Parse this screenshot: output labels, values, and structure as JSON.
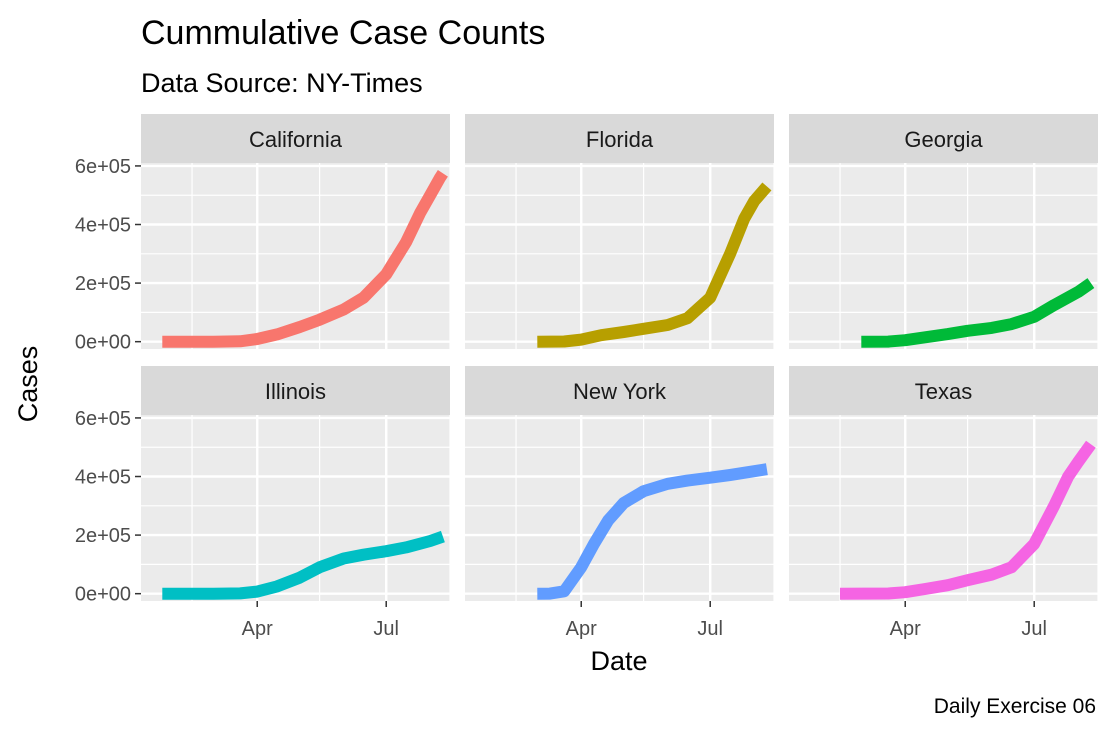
{
  "chart_data": {
    "type": "line",
    "title": "Cummulative Case Counts",
    "subtitle": "Data Source: NY-Times",
    "xlabel": "Date",
    "ylabel": "Cases",
    "caption": "Daily Exercise 06",
    "x_ticks": [
      "2020-04-01",
      "2020-07-01"
    ],
    "x_tick_labels": [
      "Apr",
      "Jul"
    ],
    "x_minor_ticks": [
      "2020-02-15",
      "2020-05-15",
      "2020-08-15"
    ],
    "xlim": [
      "2020-01-10",
      "2020-08-15"
    ],
    "y_ticks": [
      0,
      200000,
      400000,
      600000
    ],
    "y_tick_labels": [
      "0e+00",
      "2e+05",
      "4e+05",
      "6e+05"
    ],
    "ylim": [
      -25000,
      610000
    ],
    "grid": true,
    "legend": "none",
    "facets": [
      {
        "name": "California",
        "color": "#F8766D",
        "points": [
          [
            "2020-01-25",
            0
          ],
          [
            "2020-03-01",
            50
          ],
          [
            "2020-03-20",
            1200
          ],
          [
            "2020-04-01",
            9000
          ],
          [
            "2020-04-15",
            25000
          ],
          [
            "2020-05-01",
            50000
          ],
          [
            "2020-05-15",
            75000
          ],
          [
            "2020-06-01",
            110000
          ],
          [
            "2020-06-15",
            150000
          ],
          [
            "2020-07-01",
            230000
          ],
          [
            "2020-07-15",
            340000
          ],
          [
            "2020-07-25",
            440000
          ],
          [
            "2020-08-01",
            500000
          ],
          [
            "2020-08-08",
            560000
          ],
          [
            "2020-08-10",
            575000
          ]
        ]
      },
      {
        "name": "Florida",
        "color": "#B79F00",
        "points": [
          [
            "2020-03-01",
            0
          ],
          [
            "2020-03-20",
            500
          ],
          [
            "2020-04-01",
            7000
          ],
          [
            "2020-04-15",
            22000
          ],
          [
            "2020-05-01",
            33000
          ],
          [
            "2020-05-15",
            44000
          ],
          [
            "2020-06-01",
            57000
          ],
          [
            "2020-06-15",
            80000
          ],
          [
            "2020-07-01",
            150000
          ],
          [
            "2020-07-15",
            300000
          ],
          [
            "2020-07-25",
            420000
          ],
          [
            "2020-08-01",
            480000
          ],
          [
            "2020-08-10",
            530000
          ]
        ]
      },
      {
        "name": "Georgia",
        "color": "#00BA38",
        "points": [
          [
            "2020-03-01",
            0
          ],
          [
            "2020-03-20",
            300
          ],
          [
            "2020-04-01",
            5000
          ],
          [
            "2020-04-15",
            15000
          ],
          [
            "2020-05-01",
            26000
          ],
          [
            "2020-05-15",
            37000
          ],
          [
            "2020-06-01",
            47000
          ],
          [
            "2020-06-15",
            60000
          ],
          [
            "2020-07-01",
            85000
          ],
          [
            "2020-07-15",
            125000
          ],
          [
            "2020-08-01",
            170000
          ],
          [
            "2020-08-10",
            200000
          ]
        ]
      },
      {
        "name": "Illinois",
        "color": "#00BFC4",
        "points": [
          [
            "2020-01-25",
            0
          ],
          [
            "2020-03-01",
            30
          ],
          [
            "2020-03-20",
            1000
          ],
          [
            "2020-04-01",
            7000
          ],
          [
            "2020-04-15",
            25000
          ],
          [
            "2020-05-01",
            55000
          ],
          [
            "2020-05-15",
            90000
          ],
          [
            "2020-06-01",
            120000
          ],
          [
            "2020-06-15",
            133000
          ],
          [
            "2020-07-01",
            145000
          ],
          [
            "2020-07-15",
            158000
          ],
          [
            "2020-08-01",
            180000
          ],
          [
            "2020-08-10",
            195000
          ]
        ]
      },
      {
        "name": "New York",
        "color": "#619CFF",
        "points": [
          [
            "2020-03-01",
            0
          ],
          [
            "2020-03-10",
            200
          ],
          [
            "2020-03-20",
            8000
          ],
          [
            "2020-04-01",
            90000
          ],
          [
            "2020-04-10",
            170000
          ],
          [
            "2020-04-20",
            250000
          ],
          [
            "2020-05-01",
            310000
          ],
          [
            "2020-05-15",
            350000
          ],
          [
            "2020-06-01",
            375000
          ],
          [
            "2020-06-15",
            386000
          ],
          [
            "2020-07-01",
            396000
          ],
          [
            "2020-07-15",
            405000
          ],
          [
            "2020-08-01",
            418000
          ],
          [
            "2020-08-10",
            425000
          ]
        ]
      },
      {
        "name": "Texas",
        "color": "#F564E3",
        "points": [
          [
            "2020-02-15",
            0
          ],
          [
            "2020-03-20",
            500
          ],
          [
            "2020-04-01",
            5000
          ],
          [
            "2020-04-15",
            16000
          ],
          [
            "2020-05-01",
            29000
          ],
          [
            "2020-05-15",
            46000
          ],
          [
            "2020-06-01",
            65000
          ],
          [
            "2020-06-15",
            90000
          ],
          [
            "2020-07-01",
            170000
          ],
          [
            "2020-07-15",
            300000
          ],
          [
            "2020-07-25",
            400000
          ],
          [
            "2020-08-01",
            450000
          ],
          [
            "2020-08-10",
            510000
          ]
        ]
      }
    ]
  }
}
